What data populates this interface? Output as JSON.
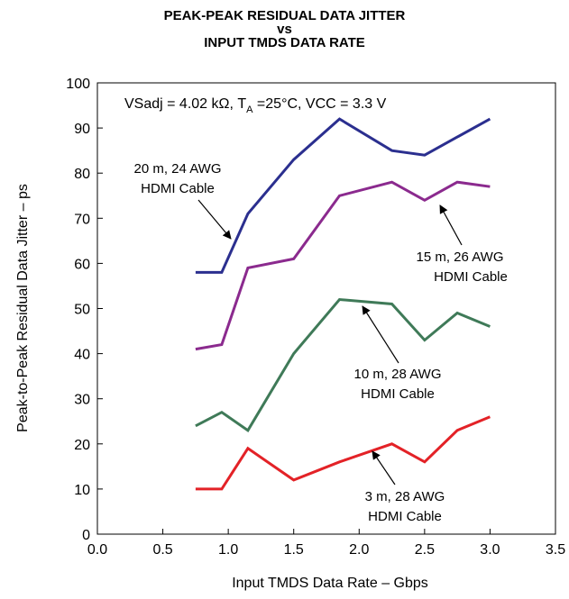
{
  "chart_data": {
    "type": "line",
    "title": [
      "PEAK-PEAK RESIDUAL DATA JITTER",
      "vs",
      "INPUT TMDS DATA RATE"
    ],
    "xlabel": "Input TMDS Data Rate – Gbps",
    "ylabel": "Peak-to-Peak Residual Data Jitter – ps",
    "xlim": [
      0,
      3.5
    ],
    "ylim": [
      0,
      100
    ],
    "x_ticks": [
      "0.0",
      "0.5",
      "1.0",
      "1.5",
      "2.0",
      "2.5",
      "3.0",
      "3.5"
    ],
    "y_ticks": [
      "0",
      "10",
      "20",
      "30",
      "40",
      "50",
      "60",
      "70",
      "80",
      "90",
      "100"
    ],
    "grid": false,
    "condition": {
      "prefix": "VSadj = 4.02 kΩ, T",
      "sub": "A",
      "suffix": " =25°C, VCC = 3.3 V"
    },
    "series": [
      {
        "name": "20 m, 24 AWG HDMI Cable",
        "color": "#2b2f8f",
        "x": [
          0.75,
          0.95,
          1.15,
          1.5,
          1.85,
          2.25,
          2.5,
          2.75,
          3.0
        ],
        "y": [
          58,
          58,
          71,
          83,
          92,
          85,
          84,
          88,
          92
        ]
      },
      {
        "name": "15 m, 26 AWG HDMI Cable",
        "color": "#8b2a8e",
        "x": [
          0.75,
          0.95,
          1.15,
          1.5,
          1.85,
          2.25,
          2.5,
          2.75,
          3.0
        ],
        "y": [
          41,
          42,
          59,
          61,
          75,
          78,
          74,
          78,
          77
        ]
      },
      {
        "name": "10 m, 28 AWG HDMI Cable",
        "color": "#3f7a58",
        "x": [
          0.75,
          0.95,
          1.15,
          1.5,
          1.85,
          2.25,
          2.5,
          2.75,
          3.0
        ],
        "y": [
          24,
          27,
          23,
          40,
          52,
          51,
          43,
          49,
          46
        ]
      },
      {
        "name": "3 m, 28 AWG HDMI Cable",
        "color": "#e32227",
        "x": [
          0.75,
          0.95,
          1.15,
          1.5,
          1.85,
          2.25,
          2.5,
          2.75,
          3.0
        ],
        "y": [
          10,
          10,
          19,
          12,
          16,
          20,
          16,
          23,
          26
        ]
      }
    ],
    "annotations": [
      {
        "lines": [
          "20 m, 24 AWG",
          "HDMI Cable"
        ]
      },
      {
        "lines": [
          "15 m, 26 AWG",
          "HDMI Cable"
        ]
      },
      {
        "lines": [
          "10 m, 28 AWG",
          "HDMI Cable"
        ]
      },
      {
        "lines": [
          "3 m, 28 AWG",
          "HDMI Cable"
        ]
      }
    ]
  }
}
